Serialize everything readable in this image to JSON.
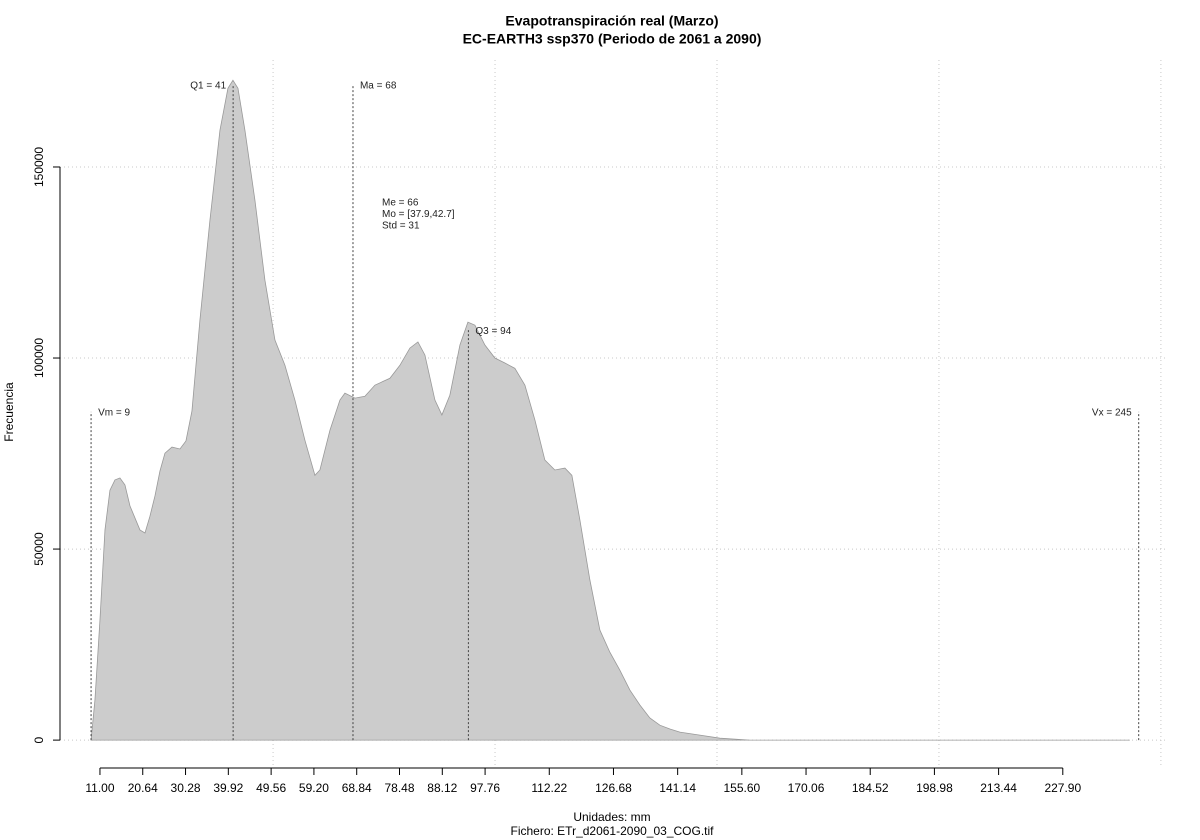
{
  "chart_data": {
    "type": "area",
    "title": "Evapotranspiración real (Marzo)",
    "subtitle": "EC-EARTH3 ssp370 (Periodo de 2061 a 2090)",
    "x_label": "Unidades: mm",
    "y_label": "Frecuencia",
    "footer": "Fichero: ETr_d2061-2090_03_COG.tif",
    "color": "#cccccc",
    "line_color": "#999999",
    "x": [
      9.0,
      9.87,
      11.0,
      12.13,
      13.25,
      14.38,
      15.5,
      16.63,
      17.76,
      20.01,
      21.14,
      22.26,
      23.39,
      24.51,
      25.64,
      27.22,
      29.02,
      30.37,
      31.72,
      33.52,
      35.78,
      38.03,
      39.83,
      40.96,
      42.09,
      43.66,
      45.91,
      48.16,
      50.42,
      52.67,
      54.92,
      57.17,
      59.43,
      60.55,
      62.81,
      65.06,
      66.18,
      68.44,
      70.69,
      72.94,
      76.32,
      78.57,
      80.82,
      82.63,
      84.2,
      86.46,
      88.03,
      89.83,
      92.09,
      93.89,
      95.47,
      97.72,
      99.97,
      102.22,
      104.47,
      106.73,
      108.98,
      111.23,
      113.48,
      115.74,
      117.31,
      119.12,
      121.37,
      123.62,
      125.87,
      128.12,
      130.38,
      132.63,
      134.88,
      137.14,
      139.39,
      141.64,
      146.14,
      150.65,
      157.41,
      243.0
    ],
    "values": [
      0,
      10500,
      31400,
      55000,
      65400,
      68100,
      68600,
      66800,
      61300,
      55000,
      54200,
      58600,
      63900,
      70400,
      75100,
      76700,
      76200,
      78300,
      86100,
      109900,
      136100,
      159600,
      170600,
      172700,
      170600,
      159600,
      141300,
      120400,
      104700,
      98100,
      89000,
      78500,
      69300,
      70700,
      81100,
      89000,
      90800,
      89500,
      90000,
      92900,
      94700,
      98100,
      102600,
      104200,
      100800,
      89000,
      85100,
      90300,
      103400,
      109400,
      108600,
      103400,
      100000,
      98700,
      97300,
      92900,
      83800,
      73300,
      70700,
      71200,
      69300,
      57600,
      41900,
      28800,
      23000,
      18300,
      13100,
      9200,
      5800,
      3900,
      2900,
      2100,
      1300,
      500,
      0,
      0
    ],
    "xlim": [
      2,
      251.6
    ],
    "ylim": [
      -7300,
      178000
    ],
    "xticks": [
      {
        "value": 11,
        "label": "11.00"
      },
      {
        "value": 20.64,
        "label": "20.64"
      },
      {
        "value": 30.28,
        "label": "30.28"
      },
      {
        "value": 39.92,
        "label": "39.92"
      },
      {
        "value": 49.56,
        "label": "49.56"
      },
      {
        "value": 59.2,
        "label": "59.20"
      },
      {
        "value": 68.84,
        "label": "68.84"
      },
      {
        "value": 78.48,
        "label": "78.48"
      },
      {
        "value": 88.12,
        "label": "88.12"
      },
      {
        "value": 97.76,
        "label": "97.76"
      },
      {
        "value": 112.22,
        "label": "112.22"
      },
      {
        "value": 126.68,
        "label": "126.68"
      },
      {
        "value": 141.14,
        "label": "141.14"
      },
      {
        "value": 155.6,
        "label": "155.60"
      },
      {
        "value": 170.06,
        "label": "170.06"
      },
      {
        "value": 184.52,
        "label": "184.52"
      },
      {
        "value": 198.98,
        "label": "198.98"
      },
      {
        "value": 213.44,
        "label": "213.44"
      },
      {
        "value": 227.9,
        "label": "227.90"
      }
    ],
    "yticks": [
      0,
      50000,
      100000,
      150000
    ],
    "xgrid": [
      50,
      100,
      150,
      200,
      250
    ],
    "grid": true,
    "markers": [
      {
        "label": "Vm = 9",
        "value": 9,
        "top": 85900
      },
      {
        "label": "Q1 = 41",
        "value": 41,
        "top": 171500
      },
      {
        "label": "Ma = 68",
        "value": 68,
        "top": 171500
      },
      {
        "label": "Q3 = 94",
        "value": 94,
        "top": 107300
      },
      {
        "label": "Vx = 245",
        "value": 245,
        "top": 85900
      }
    ],
    "stats": [
      "Me = 66",
      "Mo = [37.9,42.7]",
      "Std = 31"
    ]
  }
}
